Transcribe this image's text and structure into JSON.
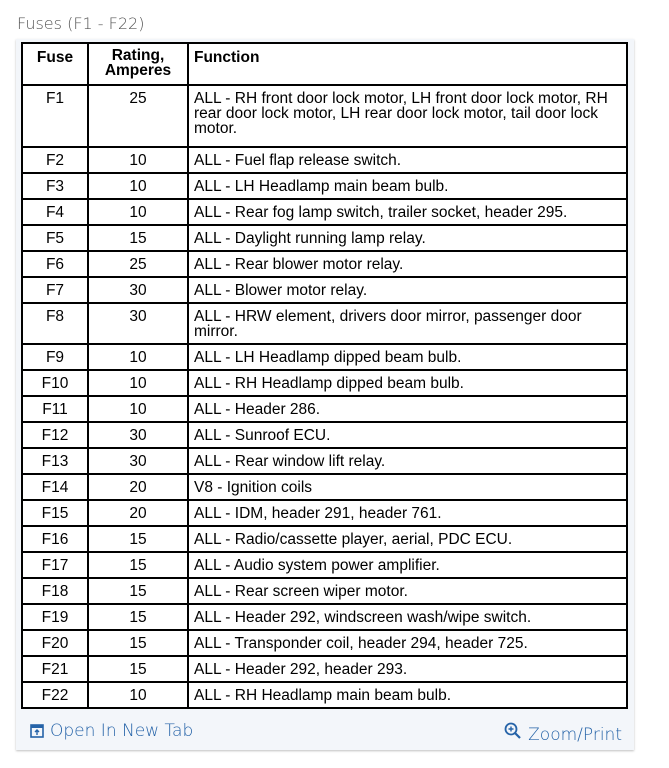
{
  "title": "Fuses (F1 - F22)",
  "table": {
    "headers": [
      "Fuse",
      "Rating,\nAmperes",
      "Function"
    ],
    "header_rating_line1": "Rating,",
    "header_rating_line2": "Amperes",
    "rows": [
      {
        "fuse": "F1",
        "rating": "25",
        "function": "ALL - RH front door lock motor, LH front door lock motor, RH rear door lock motor, LH rear door lock motor, tail door lock motor."
      },
      {
        "fuse": "F2",
        "rating": "10",
        "function": "ALL - Fuel flap release switch."
      },
      {
        "fuse": "F3",
        "rating": "10",
        "function": "ALL - LH Headlamp main beam bulb."
      },
      {
        "fuse": "F4",
        "rating": "10",
        "function": "ALL - Rear fog lamp switch, trailer socket, header 295."
      },
      {
        "fuse": "F5",
        "rating": "15",
        "function": "ALL - Daylight running lamp relay."
      },
      {
        "fuse": "F6",
        "rating": "25",
        "function": "ALL - Rear blower motor relay."
      },
      {
        "fuse": "F7",
        "rating": "30",
        "function": "ALL - Blower motor relay."
      },
      {
        "fuse": "F8",
        "rating": "30",
        "function": "ALL - HRW element, drivers door mirror, passenger door mirror."
      },
      {
        "fuse": "F9",
        "rating": "10",
        "function": "ALL - LH Headlamp dipped beam bulb."
      },
      {
        "fuse": "F10",
        "rating": "10",
        "function": "ALL - RH Headlamp dipped beam bulb."
      },
      {
        "fuse": "F11",
        "rating": "10",
        "function": "ALL - Header 286."
      },
      {
        "fuse": "F12",
        "rating": "30",
        "function": "ALL - Sunroof ECU."
      },
      {
        "fuse": "F13",
        "rating": "30",
        "function": "ALL - Rear window lift relay."
      },
      {
        "fuse": "F14",
        "rating": "20",
        "function": "V8 - Ignition coils"
      },
      {
        "fuse": "F15",
        "rating": "20",
        "function": "ALL - IDM, header 291, header 761."
      },
      {
        "fuse": "F16",
        "rating": "15",
        "function": "ALL - Radio/cassette player, aerial, PDC ECU."
      },
      {
        "fuse": "F17",
        "rating": "15",
        "function": "ALL - Audio system power amplifier."
      },
      {
        "fuse": "F18",
        "rating": "15",
        "function": "ALL - Rear screen wiper motor."
      },
      {
        "fuse": "F19",
        "rating": "15",
        "function": "ALL - Header 292, windscreen wash/wipe switch."
      },
      {
        "fuse": "F20",
        "rating": "15",
        "function": "ALL - Transponder coil, header 294, header 725."
      },
      {
        "fuse": "F21",
        "rating": "15",
        "function": "ALL - Header 292, header 293."
      },
      {
        "fuse": "F22",
        "rating": "10",
        "function": "ALL - RH Headlamp main beam bulb."
      }
    ]
  },
  "footer": {
    "open_new_tab": "Open In New Tab",
    "open_icon": "open-in-new-tab-icon",
    "zoom_print": "Zoom/Print",
    "zoom_icon": "magnifier-plus-icon",
    "link_color": "#2563a8"
  }
}
